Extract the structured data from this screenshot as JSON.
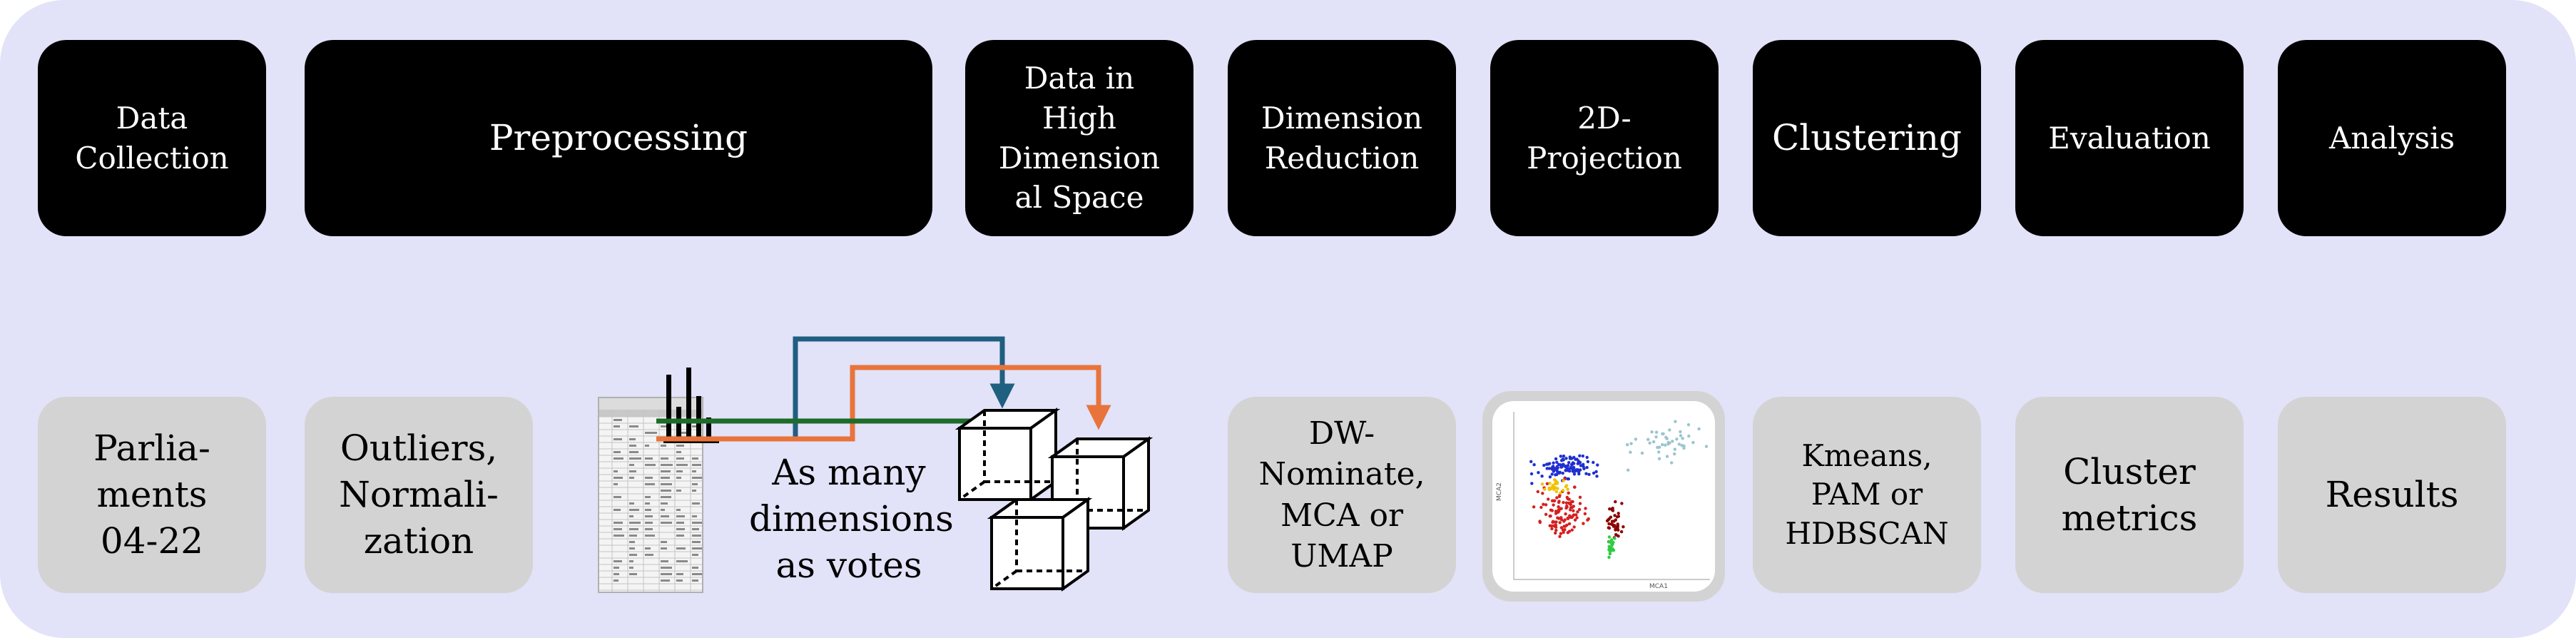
{
  "stages": [
    {
      "id": "data-collection",
      "label": "Data\nCollection"
    },
    {
      "id": "preprocessing",
      "label": "Preprocessing"
    },
    {
      "id": "high-dim",
      "label": "Data in\nHigh\nDimension\nal Space"
    },
    {
      "id": "dimension-reduction",
      "label": "Dimension\nReduction"
    },
    {
      "id": "projection",
      "label": "2D-\nProjection"
    },
    {
      "id": "clustering",
      "label": "Clustering"
    },
    {
      "id": "evaluation",
      "label": "Evaluation"
    },
    {
      "id": "analysis",
      "label": "Analysis"
    }
  ],
  "methods": [
    {
      "id": "parliaments",
      "label": "Parlia-\nments\n04-22"
    },
    {
      "id": "outliers",
      "label": "Outliers,\nNormali-\nzation"
    },
    {
      "id": "dw-nominate",
      "label": "DW-\nNominate,\nMCA or\nUMAP"
    },
    {
      "id": "kmeans",
      "label": "Kmeans,\nPAM or\nHDBSCAN"
    },
    {
      "id": "cluster-metrics",
      "label": "Cluster\nmetrics"
    },
    {
      "id": "results",
      "label": "Results"
    }
  ],
  "high_dim_caption": "As many\ndimensions\nas votes",
  "scatter_axis_labels": {
    "x": "MCA1",
    "y": "MCA2"
  },
  "colors": {
    "panel_bg": "#e2e2f8",
    "stage_box": "#000000",
    "method_box": "#d3d3d3",
    "arrow_blue": "#1f5f80",
    "arrow_orange": "#e8743b",
    "arrow_green": "#1e6b2a",
    "scatter_blue": "#1f2fd0",
    "scatter_red": "#d42020",
    "scatter_darkred": "#8b0000",
    "scatter_yellow": "#f2c200",
    "scatter_green": "#2ecc40",
    "scatter_lightblue": "#9bc4cf"
  }
}
